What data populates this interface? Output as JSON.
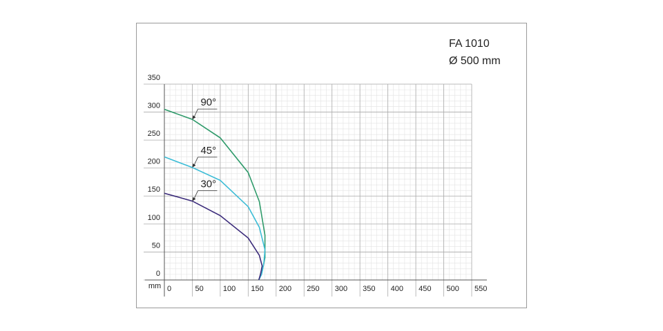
{
  "chart_data": {
    "type": "line",
    "title": "FA 1010",
    "subtitle": "Ø 500 mm",
    "xlabel": "mm",
    "xlim": [
      0,
      550
    ],
    "ylim": [
      0,
      350
    ],
    "xticks": [
      0,
      50,
      100,
      150,
      200,
      250,
      300,
      350,
      400,
      450,
      500,
      550
    ],
    "yticks": [
      0,
      50,
      100,
      150,
      200,
      250,
      300,
      350
    ],
    "grid": true,
    "series": [
      {
        "name": "90°",
        "color": "#2e9a6a",
        "x": [
          0,
          50,
          100,
          150,
          170,
          180,
          180,
          175,
          169
        ],
        "values": [
          305,
          287,
          254,
          192,
          140,
          80,
          40,
          15,
          0
        ]
      },
      {
        "name": "45°",
        "color": "#3bbcd6",
        "x": [
          0,
          50,
          100,
          150,
          170,
          180,
          178,
          174,
          169
        ],
        "values": [
          220,
          201,
          178,
          131,
          94,
          54,
          30,
          10,
          0
        ]
      },
      {
        "name": "30°",
        "color": "#3a2a7a",
        "x": [
          0,
          50,
          100,
          150,
          170,
          175,
          172,
          169
        ],
        "values": [
          155,
          141,
          115,
          75,
          44,
          25,
          10,
          0
        ]
      }
    ]
  }
}
